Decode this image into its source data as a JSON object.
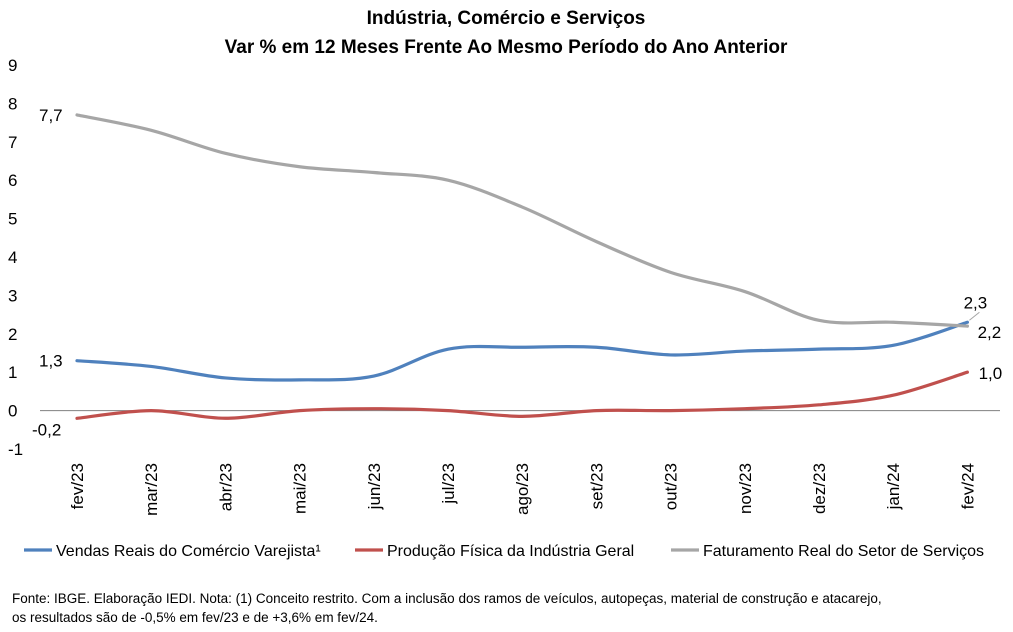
{
  "chart_data": {
    "type": "line",
    "title": "Indústria, Comércio e Serviços",
    "subtitle": "Var % em 12 Meses Frente Ao Mesmo Período do Ano Anterior",
    "categories": [
      "fev/23",
      "mar/23",
      "abr/23",
      "mai/23",
      "jun/23",
      "jul/23",
      "ago/23",
      "set/23",
      "out/23",
      "nov/23",
      "dez/23",
      "jan/24",
      "fev/24"
    ],
    "ylim": [
      -1,
      9
    ],
    "yticks": [
      "-1",
      "0",
      "1",
      "2",
      "3",
      "4",
      "5",
      "6",
      "7",
      "8",
      "9"
    ],
    "grid": false,
    "legend_position": "bottom",
    "series": [
      {
        "name": "Vendas Reais do Comércio Varejista¹",
        "color": "#4f81bd",
        "values": [
          1.3,
          1.15,
          0.85,
          0.8,
          0.9,
          1.6,
          1.65,
          1.65,
          1.45,
          1.55,
          1.6,
          1.7,
          2.3
        ]
      },
      {
        "name": "Produção Física da Indústria Geral",
        "color": "#c0504d",
        "values": [
          -0.2,
          0.0,
          -0.2,
          0.0,
          0.05,
          0.0,
          -0.15,
          0.0,
          0.0,
          0.05,
          0.15,
          0.4,
          1.0
        ]
      },
      {
        "name": "Faturamento Real do Setor de Serviços",
        "color": "#a6a6a6",
        "values": [
          7.7,
          7.3,
          6.7,
          6.35,
          6.2,
          6.0,
          5.3,
          4.4,
          3.6,
          3.1,
          2.35,
          2.3,
          2.2
        ]
      }
    ],
    "annotations": [
      {
        "series": 0,
        "point": 0,
        "text": "1,3"
      },
      {
        "series": 1,
        "point": 0,
        "text": "-0,2"
      },
      {
        "series": 2,
        "point": 0,
        "text": "7,7"
      },
      {
        "series": 0,
        "point": 12,
        "text": "2,3"
      },
      {
        "series": 2,
        "point": 12,
        "text": "2,2"
      },
      {
        "series": 1,
        "point": 12,
        "text": "1,0"
      }
    ]
  },
  "footer": {
    "line1": "Fonte: IBGE. Elaboração IEDI. Nota: (1) Conceito restrito. Com a inclusão dos ramos de veículos, autopeças, material de construção e atacarejo,",
    "line2": "os resultados são de -0,5% em fev/23 e de +3,6% em fev/24."
  }
}
